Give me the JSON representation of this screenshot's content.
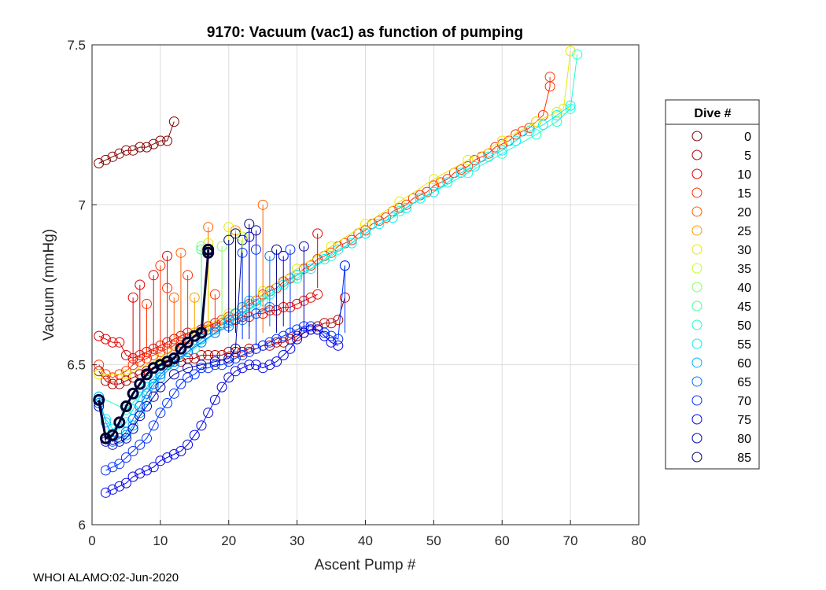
{
  "figure": {
    "footer": "WHOI ALAMO:02-Jun-2020",
    "colors": {
      "background": "#ffffff",
      "grid": "#dddddd",
      "axis": "#262626",
      "highlight": "#000033"
    }
  },
  "chart_data": {
    "type": "line",
    "title": "9170: Vacuum (vac1) as function of pumping",
    "xlabel": "Ascent Pump #",
    "ylabel": "Vacuum (mmHg)",
    "xlim": [
      0,
      80
    ],
    "ylim": [
      6,
      7.5
    ],
    "xticks": [
      0,
      10,
      20,
      30,
      40,
      50,
      60,
      70,
      80
    ],
    "yticks": [
      6,
      6.5,
      7,
      7.5
    ],
    "ytick_labels": [
      "6",
      "6.5",
      "7",
      "7.5"
    ],
    "grid": true,
    "marker": "open-circle",
    "legend": {
      "title": "Dive #",
      "placement": "outside-right",
      "entries": [
        {
          "label": "0",
          "color": "#800000"
        },
        {
          "label": "5",
          "color": "#b00000"
        },
        {
          "label": "10",
          "color": "#e00000"
        },
        {
          "label": "15",
          "color": "#ff3000"
        },
        {
          "label": "20",
          "color": "#ff6000"
        },
        {
          "label": "25",
          "color": "#ff9900"
        },
        {
          "label": "30",
          "color": "#e8e800"
        },
        {
          "label": "35",
          "color": "#c8ff20"
        },
        {
          "label": "40",
          "color": "#80ff60"
        },
        {
          "label": "45",
          "color": "#40ff90"
        },
        {
          "label": "50",
          "color": "#20ffc8"
        },
        {
          "label": "55",
          "color": "#00f0ff"
        },
        {
          "label": "60",
          "color": "#00b0ff"
        },
        {
          "label": "65",
          "color": "#0070ff"
        },
        {
          "label": "70",
          "color": "#0030ff"
        },
        {
          "label": "75",
          "color": "#0000e8"
        },
        {
          "label": "80",
          "color": "#0000b0"
        },
        {
          "label": "85",
          "color": "#000080"
        }
      ]
    },
    "series": [
      {
        "name": "dive-0",
        "color": "#800000",
        "width": 1,
        "x": [
          1,
          2,
          3,
          4,
          5,
          6,
          7,
          8,
          9,
          10,
          11,
          12
        ],
        "y": [
          7.13,
          7.14,
          7.15,
          7.16,
          7.17,
          7.17,
          7.18,
          7.18,
          7.19,
          7.2,
          7.2,
          7.26
        ]
      },
      {
        "name": "dive-5",
        "color": "#b00000",
        "width": 1,
        "x": [
          1,
          2,
          3,
          4,
          5,
          6,
          7,
          8,
          9,
          10,
          11,
          12,
          13,
          14,
          15,
          16,
          17,
          18,
          19,
          20,
          21,
          22,
          23,
          24,
          25,
          26,
          27,
          28,
          29,
          30,
          31,
          32,
          33,
          34,
          35,
          36,
          37
        ],
        "y": [
          6.48,
          6.45,
          6.44,
          6.44,
          6.45,
          6.46,
          6.47,
          6.48,
          6.49,
          6.5,
          6.5,
          6.51,
          6.51,
          6.52,
          6.52,
          6.53,
          6.53,
          6.53,
          6.53,
          6.54,
          6.54,
          6.54,
          6.55,
          6.55,
          6.56,
          6.56,
          6.57,
          6.57,
          6.58,
          6.59,
          6.6,
          6.61,
          6.62,
          6.63,
          6.63,
          6.64,
          6.71
        ]
      },
      {
        "name": "dive-10",
        "color": "#e00000",
        "width": 1,
        "x": [
          1,
          2,
          3,
          4,
          5,
          6,
          7,
          8,
          9,
          10,
          11,
          12,
          13,
          14,
          15,
          16,
          17,
          18,
          19,
          20,
          21,
          22,
          23,
          24,
          25,
          26,
          27,
          28,
          29,
          30,
          31,
          32,
          33
        ],
        "y": [
          6.59,
          6.58,
          6.57,
          6.57,
          6.53,
          6.52,
          6.53,
          6.54,
          6.55,
          6.56,
          6.57,
          6.58,
          6.59,
          6.6,
          6.6,
          6.61,
          6.62,
          6.63,
          6.63,
          6.64,
          6.64,
          6.65,
          6.65,
          6.66,
          6.66,
          6.67,
          6.67,
          6.68,
          6.68,
          6.69,
          6.7,
          6.71,
          6.72
        ]
      },
      {
        "name": "dive-15",
        "color": "#ff3000",
        "width": 1,
        "x": [
          1,
          2,
          3,
          4,
          5,
          6,
          7,
          8,
          9,
          10,
          11,
          12,
          13,
          14,
          15,
          16,
          17,
          18,
          19,
          20,
          21,
          22,
          23,
          24,
          25,
          26,
          27,
          28,
          29,
          30,
          31,
          32,
          33,
          34,
          35,
          36,
          37,
          38,
          39,
          40,
          41,
          42,
          43,
          44,
          45,
          46,
          47,
          48,
          49,
          50,
          51,
          52,
          53,
          54,
          55,
          56,
          57,
          58,
          59,
          60,
          61,
          62,
          63,
          64,
          65,
          66,
          67,
          67
        ],
        "y": [
          6.5,
          6.47,
          6.46,
          6.47,
          6.48,
          6.5,
          6.51,
          6.52,
          6.53,
          6.54,
          6.55,
          6.56,
          6.57,
          6.58,
          6.59,
          6.6,
          6.61,
          6.62,
          6.64,
          6.65,
          6.66,
          6.68,
          6.69,
          6.7,
          6.72,
          6.73,
          6.74,
          6.76,
          6.77,
          6.78,
          6.8,
          6.81,
          6.83,
          6.84,
          6.85,
          6.87,
          6.88,
          6.89,
          6.91,
          6.92,
          6.94,
          6.95,
          6.96,
          6.98,
          6.99,
          7.0,
          7.02,
          7.03,
          7.04,
          7.06,
          7.07,
          7.08,
          7.1,
          7.11,
          7.12,
          7.14,
          7.15,
          7.16,
          7.18,
          7.19,
          7.2,
          7.22,
          7.23,
          7.24,
          7.26,
          7.28,
          7.37,
          7.4
        ]
      },
      {
        "name": "dive-30",
        "color": "#e8e800",
        "width": 1,
        "x": [
          1,
          5,
          10,
          15,
          20,
          25,
          30,
          35,
          40,
          45,
          50,
          55,
          60,
          65,
          68,
          69,
          70
        ],
        "y": [
          6.47,
          6.47,
          6.52,
          6.6,
          6.66,
          6.73,
          6.8,
          6.87,
          6.94,
          7.01,
          7.08,
          7.14,
          7.2,
          7.26,
          7.29,
          7.3,
          7.48
        ]
      },
      {
        "name": "dive-50",
        "color": "#20ffc8",
        "width": 1,
        "x": [
          1,
          5,
          10,
          15,
          20,
          25,
          30,
          35,
          40,
          45,
          50,
          55,
          60,
          65,
          68,
          70,
          71
        ],
        "y": [
          6.4,
          6.36,
          6.47,
          6.55,
          6.63,
          6.7,
          6.77,
          6.84,
          6.91,
          6.98,
          7.04,
          7.1,
          7.16,
          7.22,
          7.26,
          7.3,
          7.47
        ]
      },
      {
        "name": "dive-55",
        "color": "#00f0ff",
        "width": 1,
        "x": [
          1,
          2,
          3,
          4,
          5,
          6,
          7,
          8,
          9,
          10,
          12,
          14,
          16,
          18,
          20,
          22,
          24,
          26,
          28,
          30,
          32,
          34,
          36,
          38,
          40,
          42,
          44,
          46,
          48,
          50,
          52,
          54,
          56,
          58,
          60,
          62,
          64,
          66,
          68,
          70
        ],
        "y": [
          6.38,
          6.33,
          6.3,
          6.3,
          6.32,
          6.36,
          6.4,
          6.43,
          6.46,
          6.48,
          6.51,
          6.54,
          6.57,
          6.6,
          6.63,
          6.66,
          6.69,
          6.72,
          6.75,
          6.78,
          6.8,
          6.83,
          6.86,
          6.88,
          6.91,
          6.94,
          6.96,
          6.99,
          7.02,
          7.04,
          7.07,
          7.1,
          7.12,
          7.15,
          7.17,
          7.2,
          7.23,
          7.25,
          7.28,
          7.31
        ]
      },
      {
        "name": "dive-60",
        "color": "#00b0ff",
        "width": 1,
        "x": [
          1,
          2,
          3,
          4,
          5,
          6,
          7,
          8,
          9,
          10,
          12,
          14,
          16,
          18,
          20,
          21,
          22,
          23
        ],
        "y": [
          6.4,
          6.32,
          6.28,
          6.27,
          6.28,
          6.31,
          6.35,
          6.39,
          6.43,
          6.46,
          6.5,
          6.54,
          6.58,
          6.61,
          6.64,
          6.66,
          6.68,
          6.7
        ]
      },
      {
        "name": "dive-65",
        "color": "#0070ff",
        "width": 1,
        "x": [
          1,
          2,
          3,
          4,
          5,
          6,
          7,
          8,
          9,
          10,
          12,
          14,
          16,
          18,
          20,
          22,
          24,
          26
        ],
        "y": [
          6.38,
          6.27,
          6.26,
          6.27,
          6.29,
          6.33,
          6.37,
          6.41,
          6.44,
          6.47,
          6.51,
          6.54,
          6.57,
          6.6,
          6.62,
          6.64,
          6.66,
          6.68
        ]
      },
      {
        "name": "dive-70",
        "color": "#0030ff",
        "width": 1,
        "x": [
          2,
          3,
          4,
          5,
          6,
          7,
          8,
          9,
          10,
          11,
          12,
          13,
          14,
          15,
          16,
          17,
          18,
          19,
          20,
          21,
          22,
          23,
          24,
          25,
          26,
          27,
          28,
          29,
          30,
          31,
          32,
          33,
          34,
          35,
          36,
          37
        ],
        "y": [
          6.17,
          6.18,
          6.19,
          6.21,
          6.23,
          6.25,
          6.27,
          6.31,
          6.35,
          6.38,
          6.41,
          6.44,
          6.46,
          6.47,
          6.49,
          6.49,
          6.5,
          6.5,
          6.51,
          6.52,
          6.53,
          6.54,
          6.55,
          6.56,
          6.57,
          6.58,
          6.59,
          6.6,
          6.61,
          6.62,
          6.62,
          6.61,
          6.6,
          6.59,
          6.58,
          6.81
        ]
      },
      {
        "name": "dive-75",
        "color": "#0000e8",
        "width": 1,
        "x": [
          2,
          3,
          4,
          5,
          6,
          7,
          8,
          9,
          10,
          11,
          12,
          13,
          14,
          15,
          16,
          17,
          18,
          19,
          20,
          21,
          22,
          23,
          24,
          25,
          26,
          27,
          28,
          29,
          30,
          31,
          32,
          33,
          34,
          35,
          36
        ],
        "y": [
          6.1,
          6.11,
          6.12,
          6.13,
          6.15,
          6.16,
          6.17,
          6.18,
          6.2,
          6.21,
          6.22,
          6.23,
          6.25,
          6.28,
          6.31,
          6.35,
          6.39,
          6.43,
          6.46,
          6.48,
          6.49,
          6.5,
          6.5,
          6.49,
          6.5,
          6.51,
          6.53,
          6.55,
          6.58,
          6.6,
          6.61,
          6.61,
          6.59,
          6.57,
          6.56
        ]
      },
      {
        "name": "dive-80",
        "color": "#0000b0",
        "width": 1,
        "x": [
          1,
          2,
          3,
          4,
          5,
          6,
          7,
          8,
          9,
          10,
          12,
          14,
          16,
          18,
          20,
          21,
          22
        ],
        "y": [
          6.37,
          6.26,
          6.25,
          6.26,
          6.27,
          6.3,
          6.34,
          6.37,
          6.4,
          6.43,
          6.47,
          6.49,
          6.5,
          6.51,
          6.52,
          6.55,
          6.89
        ]
      },
      {
        "name": "dive-85",
        "color": "#000033",
        "width": 3,
        "x": [
          1,
          2,
          3,
          4,
          5,
          6,
          7,
          8,
          9,
          10,
          11,
          12,
          13,
          14,
          15,
          16,
          17,
          17
        ],
        "y": [
          6.39,
          6.27,
          6.28,
          6.32,
          6.37,
          6.41,
          6.44,
          6.47,
          6.49,
          6.5,
          6.51,
          6.52,
          6.55,
          6.57,
          6.59,
          6.6,
          6.85,
          6.86
        ]
      }
    ],
    "spikes": [
      {
        "x": 6,
        "y0": 6.5,
        "y1": 6.71,
        "color": "#e00000"
      },
      {
        "x": 7,
        "y0": 6.52,
        "y1": 6.75,
        "color": "#e00000"
      },
      {
        "x": 8,
        "y0": 6.53,
        "y1": 6.69,
        "color": "#ff3000"
      },
      {
        "x": 9,
        "y0": 6.54,
        "y1": 6.78,
        "color": "#e00000"
      },
      {
        "x": 10,
        "y0": 6.55,
        "y1": 6.81,
        "color": "#ff3000"
      },
      {
        "x": 11,
        "y0": 6.56,
        "y1": 6.84,
        "color": "#e00000"
      },
      {
        "x": 11,
        "y0": 6.52,
        "y1": 6.74,
        "color": "#ff3000"
      },
      {
        "x": 12,
        "y0": 6.57,
        "y1": 6.71,
        "color": "#ff6000"
      },
      {
        "x": 13,
        "y0": 6.58,
        "y1": 6.85,
        "color": "#ff6000"
      },
      {
        "x": 14,
        "y0": 6.59,
        "y1": 6.78,
        "color": "#ff3000"
      },
      {
        "x": 15,
        "y0": 6.6,
        "y1": 6.71,
        "color": "#ff9900"
      },
      {
        "x": 16,
        "y0": 6.6,
        "y1": 6.87,
        "color": "#80ff60"
      },
      {
        "x": 16,
        "y0": 6.58,
        "y1": 6.86,
        "color": "#40ff90"
      },
      {
        "x": 17,
        "y0": 6.61,
        "y1": 6.93,
        "color": "#ff6000"
      },
      {
        "x": 17,
        "y0": 6.6,
        "y1": 6.88,
        "color": "#e8e800"
      },
      {
        "x": 18,
        "y0": 6.62,
        "y1": 6.72,
        "color": "#ff3000"
      },
      {
        "x": 19,
        "y0": 6.62,
        "y1": 6.87,
        "color": "#80ff60"
      },
      {
        "x": 20,
        "y0": 6.64,
        "y1": 6.93,
        "color": "#e8e800"
      },
      {
        "x": 20,
        "y0": 6.6,
        "y1": 6.89,
        "color": "#000080"
      },
      {
        "x": 21,
        "y0": 6.62,
        "y1": 6.92,
        "color": "#ff9900"
      },
      {
        "x": 21,
        "y0": 6.6,
        "y1": 6.91,
        "color": "#000033"
      },
      {
        "x": 22,
        "y0": 6.62,
        "y1": 6.9,
        "color": "#c8ff20"
      },
      {
        "x": 22,
        "y0": 6.58,
        "y1": 6.85,
        "color": "#0030ff"
      },
      {
        "x": 23,
        "y0": 6.62,
        "y1": 6.94,
        "color": "#000080"
      },
      {
        "x": 23,
        "y0": 6.58,
        "y1": 6.9,
        "color": "#0000e8"
      },
      {
        "x": 24,
        "y0": 6.6,
        "y1": 6.92,
        "color": "#0000b0"
      },
      {
        "x": 24,
        "y0": 6.56,
        "y1": 6.86,
        "color": "#0030ff"
      },
      {
        "x": 25,
        "y0": 6.6,
        "y1": 7.0,
        "color": "#ff6000"
      },
      {
        "x": 26,
        "y0": 6.62,
        "y1": 6.84,
        "color": "#0070ff"
      },
      {
        "x": 27,
        "y0": 6.6,
        "y1": 6.86,
        "color": "#000080"
      },
      {
        "x": 28,
        "y0": 6.62,
        "y1": 6.84,
        "color": "#0000e8"
      },
      {
        "x": 29,
        "y0": 6.6,
        "y1": 6.86,
        "color": "#0030ff"
      },
      {
        "x": 31,
        "y0": 6.6,
        "y1": 6.87,
        "color": "#0000b0"
      },
      {
        "x": 33,
        "y0": 6.74,
        "y1": 6.91,
        "color": "#e00000"
      },
      {
        "x": 37,
        "y0": 6.6,
        "y1": 6.81,
        "color": "#0030ff"
      }
    ],
    "ground_truth_is_approximate": true
  }
}
